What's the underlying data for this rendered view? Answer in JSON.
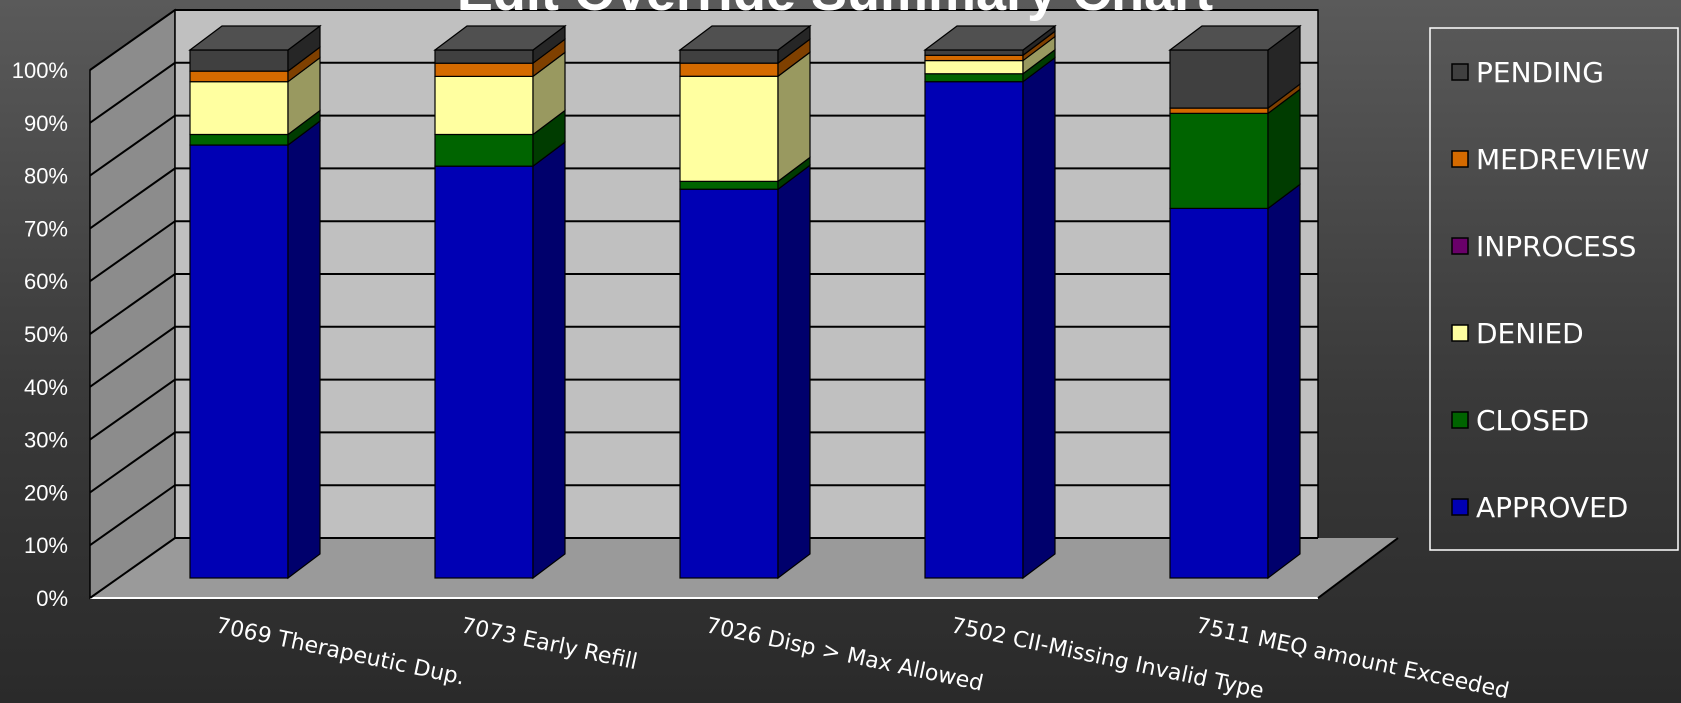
{
  "chart_data": {
    "type": "bar",
    "stacked": true,
    "percent_stacked": true,
    "three_d": true,
    "title": "Edit Override Summary Chart",
    "categories": [
      "7069 Therapeutic Dup.",
      "7073       Early Refill",
      "7026 Disp > Max Allowed",
      "7502 CII-Missing Invalid Type",
      "7511 MEQ amount Exceeded"
    ],
    "series": [
      {
        "name": "APPROVED",
        "color": "#0000b4",
        "values": [
          82,
          78,
          74,
          94,
          70
        ]
      },
      {
        "name": "CLOSED",
        "color": "#006400",
        "values": [
          2,
          6,
          1.5,
          1.5,
          18
        ]
      },
      {
        "name": "DENIED",
        "color": "#ffffa0",
        "values": [
          10,
          11,
          20,
          2.5,
          0
        ]
      },
      {
        "name": "INPROCESS",
        "color": "#6a006a",
        "values": [
          0,
          0,
          0,
          0,
          0
        ]
      },
      {
        "name": "MEDREVIEW",
        "color": "#d46a00",
        "values": [
          2,
          2.5,
          2.5,
          1,
          1
        ]
      },
      {
        "name": "PENDING",
        "color": "#404040",
        "values": [
          4,
          2.5,
          2.5,
          1,
          11
        ]
      }
    ],
    "legend_order": [
      "PENDING",
      "MEDREVIEW",
      "INPROCESS",
      "DENIED",
      "CLOSED",
      "APPROVED"
    ],
    "y_ticks": [
      "0%",
      "10%",
      "20%",
      "30%",
      "40%",
      "50%",
      "60%",
      "70%",
      "80%",
      "90%",
      "100%"
    ],
    "ylim": [
      0,
      100
    ],
    "grid": true,
    "legend_position": "right"
  }
}
